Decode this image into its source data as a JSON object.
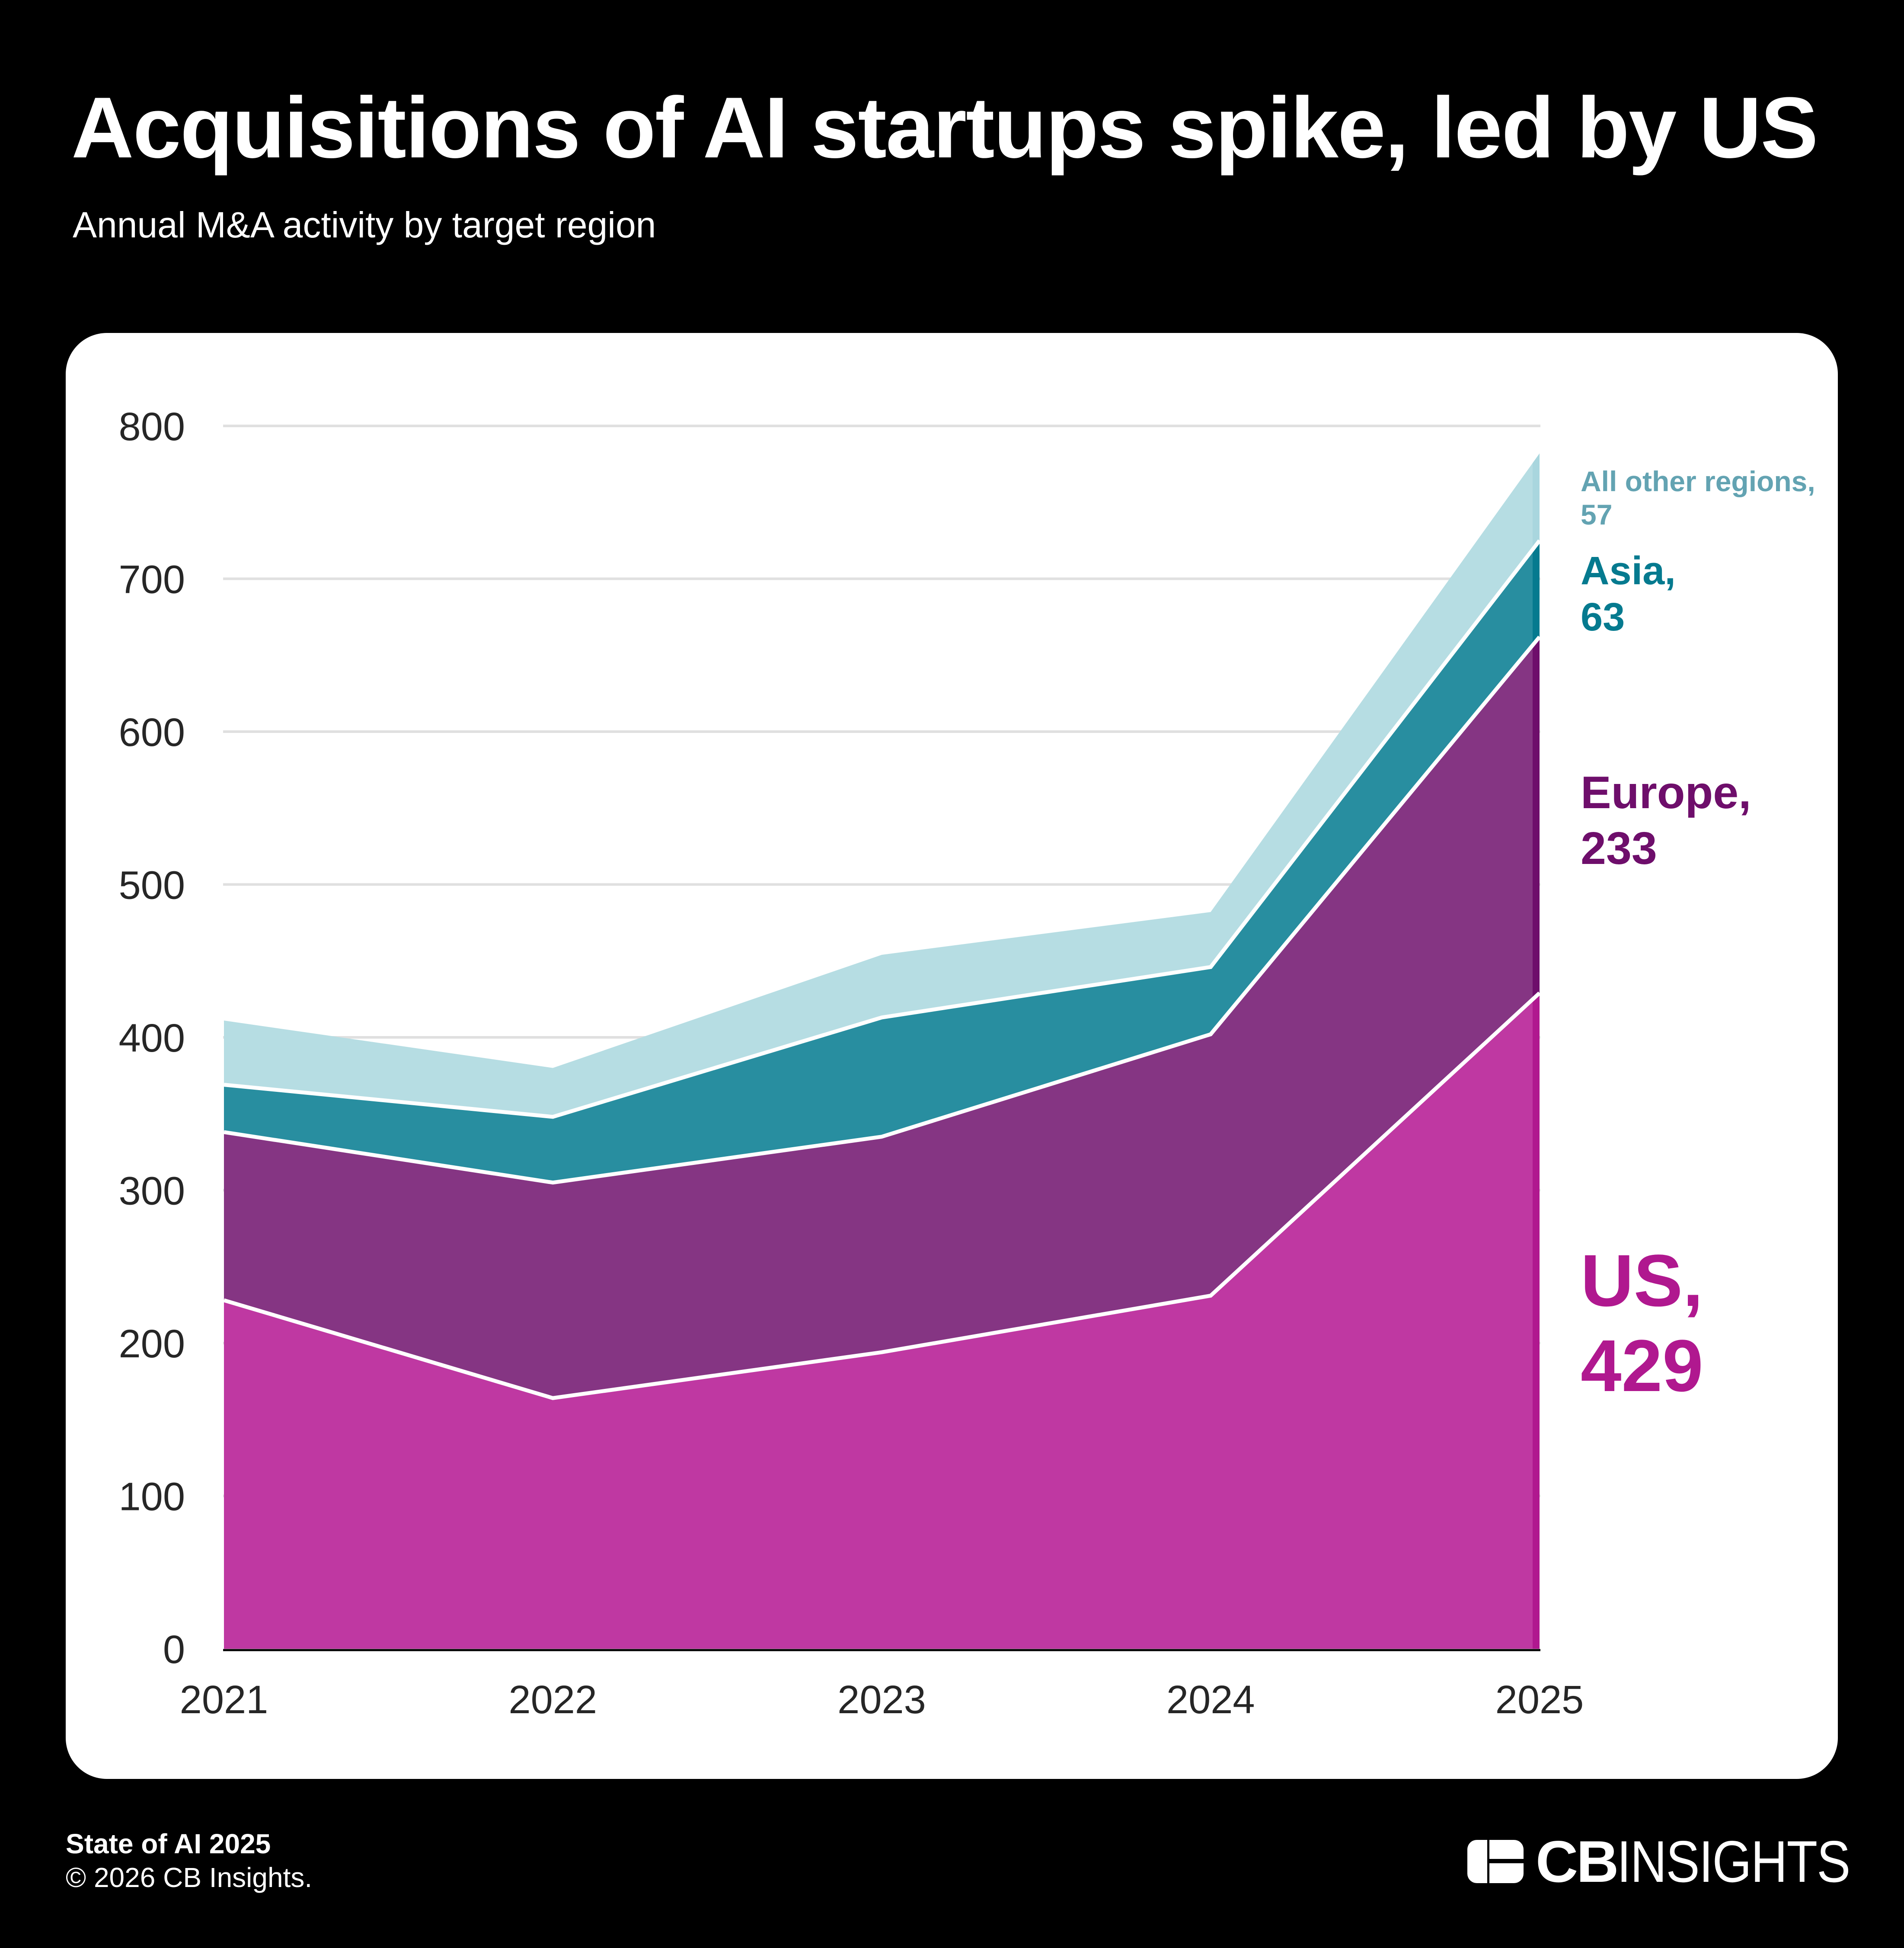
{
  "header": {
    "title": "Acquisitions of AI startups spike, led by US",
    "subtitle": "Annual M&A activity by target region"
  },
  "footer": {
    "source": "State of AI 2025",
    "copyright": "© 2026 CB Insights.",
    "logo": {
      "icon": "cb-insights-logo-icon",
      "bold_text": "CB",
      "light_text": "INSIGHTS"
    }
  },
  "colors": {
    "background": "#000000",
    "card": "#ffffff",
    "us_fill": "#bf38a2",
    "us_label": "#b0188f",
    "europe_fill": "#853583",
    "europe_label": "#6e0e6b",
    "asia_fill": "#288ea0",
    "asia_label": "#057a8f",
    "other_fill": "#b6dde3",
    "other_label": "#63a3b2",
    "gridline": "#e0e0e0",
    "axis": "#000000",
    "tick_text": "#262626"
  },
  "chart_data": {
    "type": "area",
    "stacked": true,
    "title": "Acquisitions of AI startups spike, led by US",
    "subtitle": "Annual M&A activity by target region",
    "xlabel": "",
    "ylabel": "",
    "categories": [
      "2021",
      "2022",
      "2023",
      "2024",
      "2025"
    ],
    "ylim": [
      0,
      800
    ],
    "yticks": [
      0,
      100,
      200,
      300,
      400,
      500,
      600,
      700,
      800
    ],
    "ytick_labels": [
      "0",
      "100",
      "200",
      "300",
      "400",
      "500",
      "600",
      "700",
      "800"
    ],
    "grid": "horizontal",
    "legend": "direct labels at right end of each band",
    "series": [
      {
        "name": "US",
        "label_line1": "US,",
        "label_line2": "429",
        "values": [
          228,
          164,
          194,
          231,
          429
        ],
        "fill": "#bf38a2",
        "end_fill": "#b0188f",
        "label_color": "#b0188f"
      },
      {
        "name": "Europe",
        "label_line1": "Europe,",
        "label_line2": "233",
        "values": [
          110,
          141,
          141,
          171,
          233
        ],
        "fill": "#853583",
        "end_fill": "#6e0e6b",
        "label_color": "#6e0e6b"
      },
      {
        "name": "Asia",
        "label_line1": "Asia,",
        "label_line2": "63",
        "values": [
          31,
          43,
          78,
          44,
          63
        ],
        "fill": "#288ea0",
        "end_fill": "#057a8f",
        "label_color": "#057a8f"
      },
      {
        "name": "All other regions",
        "label_line1": "All other regions,",
        "label_line2": "57",
        "values": [
          42,
          32,
          41,
          36,
          57
        ],
        "fill": "#b6dde3",
        "end_fill": "#a9d6de",
        "label_color": "#63a3b2"
      }
    ]
  }
}
